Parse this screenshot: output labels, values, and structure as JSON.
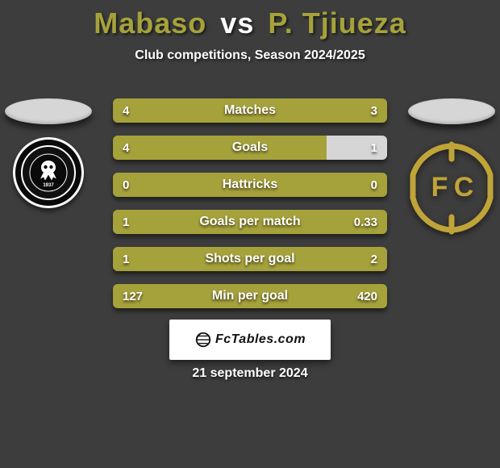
{
  "title": {
    "player1": "Mabaso",
    "vs": "vs",
    "player2": "P. Tjiueza",
    "player1_color": "#a6a23b",
    "player2_color": "#a6a23b"
  },
  "subtitle": "Club competitions, Season 2024/2025",
  "columns": {
    "left_head_color": "#d6d6d6",
    "right_head_color": "#d6d6d6"
  },
  "bars": {
    "container_width": 340,
    "left_color": "#a6a23b",
    "right_color": "#d6d6d6",
    "rows": [
      {
        "label": "Matches",
        "left_val": "4",
        "right_val": "3",
        "left_pct": 100
      },
      {
        "label": "Goals",
        "left_val": "4",
        "right_val": "1",
        "left_pct": 78
      },
      {
        "label": "Hattricks",
        "left_val": "0",
        "right_val": "0",
        "left_pct": 100
      },
      {
        "label": "Goals per match",
        "left_val": "1",
        "right_val": "0.33",
        "left_pct": 100
      },
      {
        "label": "Shots per goal",
        "left_val": "1",
        "right_val": "2",
        "left_pct": 100
      },
      {
        "label": "Min per goal",
        "left_val": "127",
        "right_val": "420",
        "left_pct": 100
      }
    ]
  },
  "brand": "FcTables.com",
  "date": "21 september 2024",
  "badge_right_color": "#c0a438",
  "background_color": "#3d3d3d"
}
